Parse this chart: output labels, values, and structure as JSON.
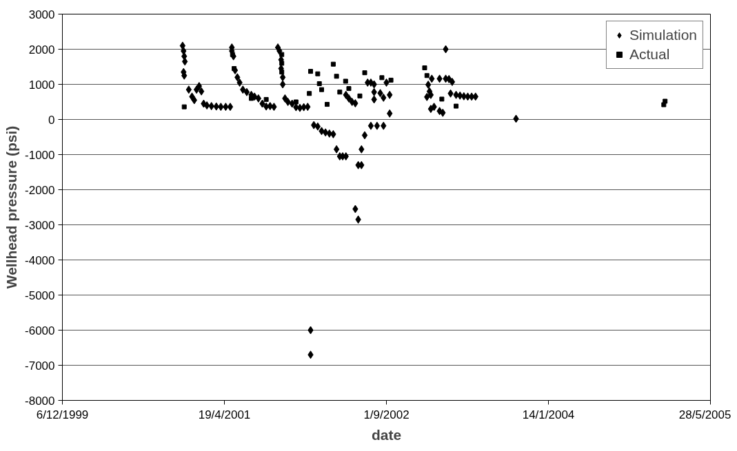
{
  "chart_data": {
    "type": "scatter",
    "xlabel": "date",
    "ylabel": "Wellhead pressure (psi)",
    "xlim": [
      "1999-12-06",
      "2005-05-28"
    ],
    "xticks": [
      {
        "value": "1999-12-06",
        "label": "6/12/1999"
      },
      {
        "value": "2001-04-19",
        "label": "19/4/2001"
      },
      {
        "value": "2002-09-01",
        "label": "1/9/2002"
      },
      {
        "value": "2004-01-14",
        "label": "14/1/2004"
      },
      {
        "value": "2005-05-28",
        "label": "28/5/2005"
      }
    ],
    "ylim": [
      -8000,
      3000
    ],
    "yticks": [
      3000,
      2000,
      1000,
      0,
      -1000,
      -2000,
      -3000,
      -4000,
      -5000,
      -6000,
      -7000,
      -8000
    ],
    "grid": "y",
    "legend": "top right",
    "series": [
      {
        "name": "Simulation",
        "color": "#000000",
        "marker": "diamond",
        "x": [
          "2000-12-11",
          "2000-12-14",
          "2000-12-16",
          "2000-12-18",
          "2000-12-14",
          "2000-12-16",
          "2000-12-30",
          "2001-01-09",
          "2001-01-16",
          "2001-01-23",
          "2001-01-31",
          "2001-02-07",
          "2001-02-14",
          "2001-02-24",
          "2001-03-10",
          "2001-03-25",
          "2001-04-08",
          "2001-04-23",
          "2001-05-07",
          "2001-05-12",
          "2001-05-12",
          "2001-05-17",
          "2001-05-22",
          "2001-05-29",
          "2001-06-05",
          "2001-06-15",
          "2001-06-27",
          "2001-07-11",
          "2001-07-21",
          "2001-08-02",
          "2001-08-14",
          "2001-08-26",
          "2001-09-07",
          "2001-09-19",
          "2001-10-01",
          "2001-10-06",
          "2001-10-11",
          "2001-10-11",
          "2001-10-16",
          "2001-10-16",
          "2001-10-23",
          "2001-11-01",
          "2001-11-14",
          "2001-11-26",
          "2001-12-08",
          "2001-12-20",
          "2002-01-01",
          "2002-01-10",
          "2002-01-10",
          "2002-01-20",
          "2002-02-01",
          "2002-02-13",
          "2002-02-25",
          "2002-03-09",
          "2002-03-21",
          "2002-03-31",
          "2002-04-10",
          "2002-04-19",
          "2002-04-29",
          "2002-06-06",
          "2002-06-16",
          "2002-05-28",
          "2002-06-06",
          "2002-06-26",
          "2002-06-16",
          "2002-07-15",
          "2002-08-03",
          "2002-08-23",
          "2002-09-11",
          "2002-04-29",
          "2002-05-08",
          "2002-05-18",
          "2002-05-28",
          "2002-07-05",
          "2002-07-15",
          "2002-07-25",
          "2002-07-25",
          "2002-07-25",
          "2002-08-13",
          "2002-08-23",
          "2002-09-01",
          "2002-09-11",
          "2003-01-08",
          "2003-01-12",
          "2003-01-04",
          "2003-01-16",
          "2003-01-26",
          "2003-02-12",
          "2003-02-22",
          "2003-01-16",
          "2003-01-19",
          "2003-02-12",
          "2003-03-03",
          "2003-03-13",
          "2003-03-23",
          "2003-03-03",
          "2003-03-18",
          "2003-04-04",
          "2003-04-16",
          "2003-04-28",
          "2003-05-10",
          "2003-05-22",
          "2003-06-03",
          "2003-10-06"
        ],
        "values": [
          2100,
          1950,
          1800,
          1650,
          1350,
          1250,
          850,
          650,
          550,
          850,
          950,
          800,
          450,
          400,
          380,
          370,
          360,
          360,
          360,
          2050,
          1950,
          1800,
          1400,
          1200,
          1050,
          850,
          780,
          700,
          650,
          600,
          450,
          370,
          380,
          360,
          2050,
          1950,
          1700,
          1450,
          1200,
          1000,
          600,
          500,
          450,
          350,
          330,
          350,
          360,
          -6000,
          -6700,
          -160,
          -200,
          -330,
          -370,
          -400,
          -420,
          -850,
          -1050,
          -1050,
          -1050,
          -1300,
          -1300,
          -2550,
          -2850,
          -450,
          -850,
          -180,
          -180,
          -180,
          170,
          700,
          600,
          500,
          460,
          1050,
          1050,
          1000,
          780,
          570,
          750,
          620,
          1050,
          700,
          990,
          800,
          640,
          700,
          360,
          240,
          190,
          300,
          1160,
          1160,
          1160,
          1150,
          1070,
          2000,
          740,
          700,
          680,
          660,
          650,
          650,
          650,
          20
        ]
      },
      {
        "name": "Actual",
        "color": "#000000",
        "marker": "square",
        "x": [
          "2000-12-16",
          "2001-05-14",
          "2001-05-19",
          "2001-10-13",
          "2001-10-13",
          "2001-10-13",
          "2001-07-11",
          "2001-08-26",
          "2001-11-26",
          "2002-01-06",
          "2002-01-10",
          "2002-02-01",
          "2002-02-06",
          "2002-02-13",
          "2002-03-02",
          "2002-03-21",
          "2002-03-31",
          "2002-04-10",
          "2002-04-28",
          "2002-05-08",
          "2002-06-11",
          "2002-06-26",
          "2002-08-18",
          "2002-09-15",
          "2002-12-28",
          "2003-01-04",
          "2003-02-19",
          "2003-04-04",
          "2005-01-04",
          "2005-01-08"
        ],
        "values": [
          360,
          1850,
          1450,
          1850,
          1600,
          1350,
          600,
          570,
          500,
          740,
          1370,
          1300,
          1020,
          850,
          430,
          1575,
          1230,
          780,
          1090,
          880,
          670,
          1330,
          1190,
          1120,
          1470,
          1250,
          580,
          380,
          420,
          520
        ]
      }
    ]
  }
}
